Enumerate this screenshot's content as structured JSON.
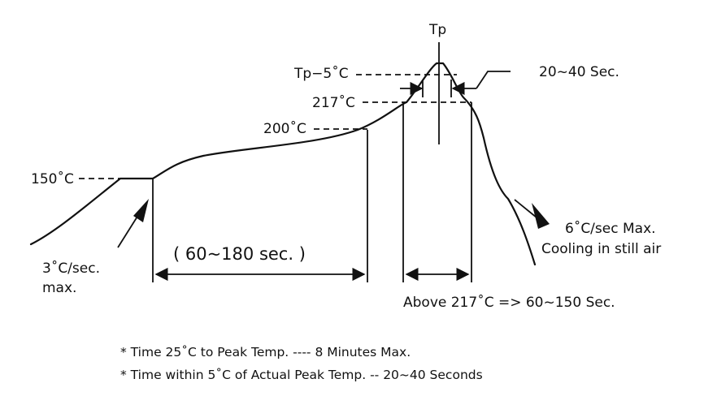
{
  "diagram": {
    "labels": {
      "tp": "Tp",
      "tp_minus_5": "Tp−5˚C",
      "t217": "217˚C",
      "t200": "200˚C",
      "t150": "150˚C",
      "peak_time": "20~40 Sec.",
      "soak_time": "( 60~180 sec. )",
      "above_217": "Above 217˚C => 60~150 Sec.",
      "ramp_up_line1": "3˚C/sec.",
      "ramp_up_line2": "max.",
      "cooling_line1": "6˚C/sec Max.",
      "cooling_line2": "Cooling in still air"
    },
    "notes": [
      "* Time 25˚C to Peak Temp. ---- 8 Minutes Max.",
      "* Time within 5˚C of Actual Peak Temp. -- 20~40 Seconds"
    ]
  }
}
